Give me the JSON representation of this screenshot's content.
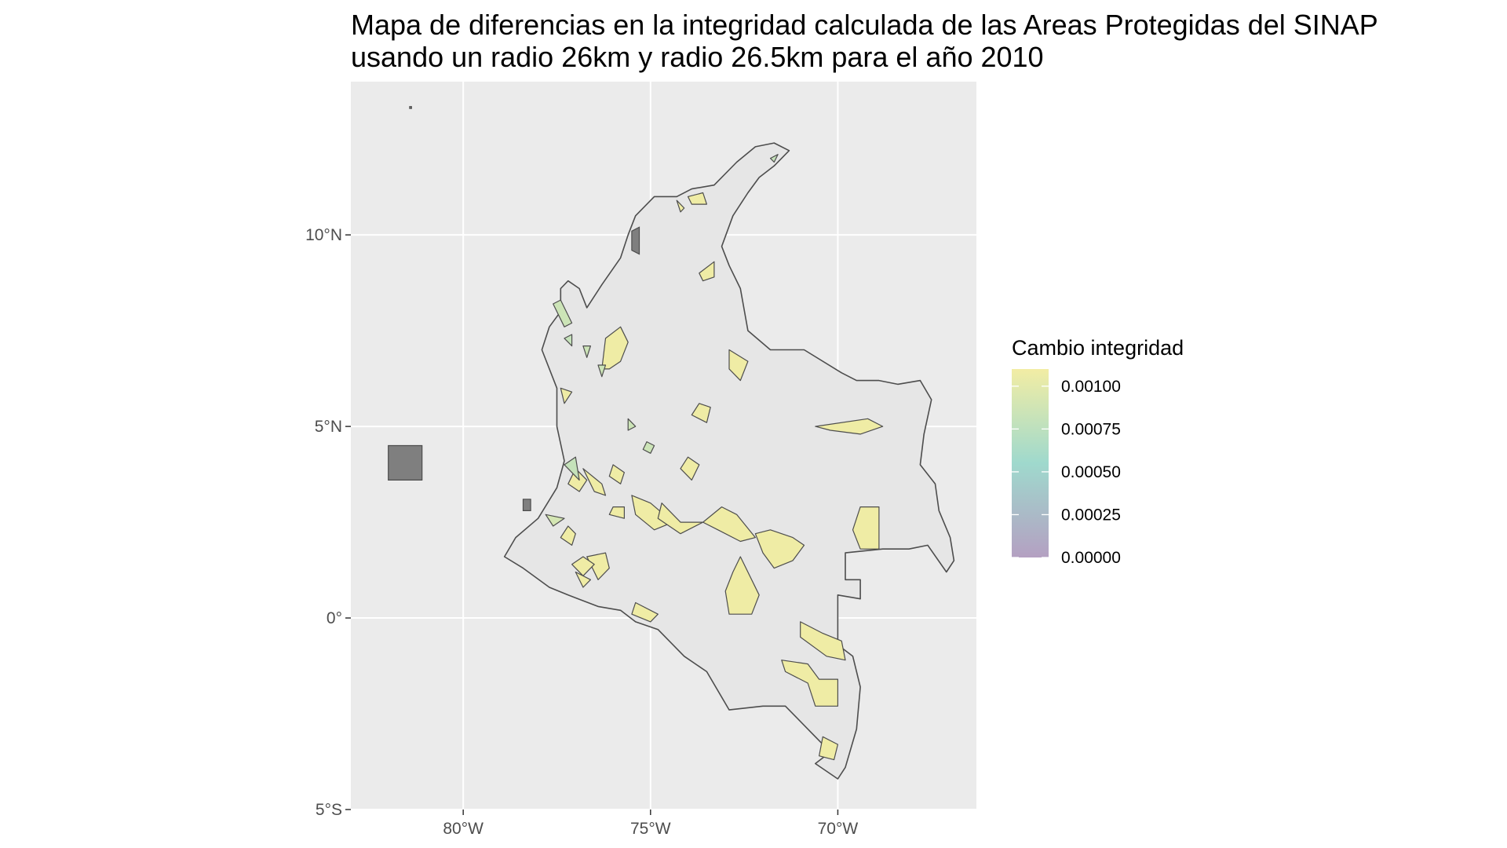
{
  "title": {
    "line1": "Mapa de diferencias en la integridad calculada de las Areas Protegidas del SINAP",
    "line2": "usando un radio 26km y radio 26.5km para el año 2010"
  },
  "colors": {
    "panel_bg": "#ebebeb",
    "grid": "#ffffff",
    "land": "#e6e6e6",
    "border": "#4d4d4d",
    "na_fill": "#7f7f7f",
    "scale_low": "#b4a0c2",
    "scale_mid": "#9fd9cd",
    "scale_high": "#f2eda4"
  },
  "map_data": {
    "projection": "equirectangular (degrees)",
    "lon_range": [
      -83.0,
      -66.3
    ],
    "lat_range": [
      -5.0,
      14.0
    ],
    "x_ticks": [
      {
        "lon": -80,
        "label": "80°W"
      },
      {
        "lon": -75,
        "label": "75°W"
      },
      {
        "lon": -70,
        "label": "70°W"
      }
    ],
    "y_ticks": [
      {
        "lat": 10,
        "label": "10°N"
      },
      {
        "lat": 5,
        "label": "5°N"
      },
      {
        "lat": 0,
        "label": "0°"
      },
      {
        "lat": -5,
        "label": "5°S"
      }
    ],
    "legend": {
      "title": "Cambio integridad",
      "min": 0.0,
      "max": 0.0011,
      "breaks": [
        {
          "value": 0.001,
          "label": "0.00100"
        },
        {
          "value": 0.00075,
          "label": "0.00075"
        },
        {
          "value": 0.0005,
          "label": "0.00050"
        },
        {
          "value": 0.00025,
          "label": "0.00025"
        },
        {
          "value": 0.0,
          "label": "0.00000"
        }
      ]
    },
    "country_outline": [
      [
        -77.4,
        8.6
      ],
      [
        -77.2,
        8.8
      ],
      [
        -76.9,
        8.6
      ],
      [
        -76.7,
        8.1
      ],
      [
        -76.3,
        8.7
      ],
      [
        -75.8,
        9.4
      ],
      [
        -75.6,
        10.0
      ],
      [
        -75.4,
        10.5
      ],
      [
        -74.9,
        11.0
      ],
      [
        -74.3,
        11.0
      ],
      [
        -73.9,
        11.2
      ],
      [
        -73.3,
        11.3
      ],
      [
        -72.7,
        11.9
      ],
      [
        -72.2,
        12.3
      ],
      [
        -71.7,
        12.4
      ],
      [
        -71.3,
        12.2
      ],
      [
        -71.7,
        11.8
      ],
      [
        -72.1,
        11.5
      ],
      [
        -72.4,
        11.1
      ],
      [
        -72.8,
        10.5
      ],
      [
        -73.1,
        9.7
      ],
      [
        -72.9,
        9.2
      ],
      [
        -72.6,
        8.6
      ],
      [
        -72.4,
        7.5
      ],
      [
        -71.8,
        7.0
      ],
      [
        -70.9,
        7.0
      ],
      [
        -69.9,
        6.4
      ],
      [
        -69.5,
        6.2
      ],
      [
        -68.9,
        6.2
      ],
      [
        -68.4,
        6.1
      ],
      [
        -67.8,
        6.2
      ],
      [
        -67.5,
        5.7
      ],
      [
        -67.7,
        4.8
      ],
      [
        -67.8,
        4.0
      ],
      [
        -67.4,
        3.5
      ],
      [
        -67.3,
        2.8
      ],
      [
        -67.0,
        2.1
      ],
      [
        -66.9,
        1.5
      ],
      [
        -67.1,
        1.2
      ],
      [
        -67.6,
        1.9
      ],
      [
        -68.1,
        1.8
      ],
      [
        -68.8,
        1.8
      ],
      [
        -69.8,
        1.7
      ],
      [
        -69.8,
        1.0
      ],
      [
        -69.4,
        1.0
      ],
      [
        -69.4,
        0.5
      ],
      [
        -70.0,
        0.6
      ],
      [
        -70.0,
        -0.7
      ],
      [
        -69.6,
        -1.0
      ],
      [
        -69.4,
        -1.8
      ],
      [
        -69.5,
        -2.9
      ],
      [
        -69.8,
        -3.9
      ],
      [
        -70.0,
        -4.2
      ],
      [
        -70.6,
        -3.8
      ],
      [
        -70.2,
        -3.5
      ],
      [
        -70.7,
        -3.0
      ],
      [
        -71.4,
        -2.3
      ],
      [
        -72.0,
        -2.3
      ],
      [
        -72.9,
        -2.4
      ],
      [
        -73.5,
        -1.4
      ],
      [
        -74.1,
        -1.0
      ],
      [
        -74.8,
        -0.3
      ],
      [
        -75.4,
        -0.1
      ],
      [
        -75.8,
        0.2
      ],
      [
        -76.4,
        0.3
      ],
      [
        -77.2,
        0.6
      ],
      [
        -77.7,
        0.8
      ],
      [
        -78.4,
        1.3
      ],
      [
        -78.9,
        1.6
      ],
      [
        -78.6,
        2.1
      ],
      [
        -78.0,
        2.6
      ],
      [
        -77.5,
        3.4
      ],
      [
        -77.3,
        4.1
      ],
      [
        -77.5,
        5.0
      ],
      [
        -77.5,
        6.0
      ],
      [
        -77.9,
        7.0
      ],
      [
        -77.7,
        7.6
      ],
      [
        -77.4,
        8.0
      ],
      [
        -77.4,
        8.6
      ]
    ],
    "protected_areas_no_data": [
      [
        [
          -82.0,
          4.5
        ],
        [
          -81.1,
          4.5
        ],
        [
          -81.1,
          3.6
        ],
        [
          -82.0,
          3.6
        ]
      ],
      [
        [
          -75.5,
          10.1
        ],
        [
          -75.3,
          10.2
        ],
        [
          -75.3,
          9.5
        ],
        [
          -75.5,
          9.6
        ]
      ],
      [
        [
          -78.4,
          3.1
        ],
        [
          -78.2,
          3.1
        ],
        [
          -78.2,
          2.8
        ],
        [
          -78.4,
          2.8
        ]
      ],
      [
        [
          -81.43,
          13.35
        ],
        [
          -81.38,
          13.35
        ],
        [
          -81.38,
          13.3
        ],
        [
          -81.43,
          13.3
        ]
      ]
    ],
    "protected_areas": [
      {
        "value": 0.00108,
        "coords": [
          [
            -76.3,
            6.5
          ],
          [
            -76.2,
            7.3
          ],
          [
            -75.8,
            7.6
          ],
          [
            -75.6,
            7.2
          ],
          [
            -75.8,
            6.7
          ],
          [
            -76.1,
            6.5
          ]
        ]
      },
      {
        "value": 0.00108,
        "coords": [
          [
            -73.1,
            2.9
          ],
          [
            -72.7,
            2.7
          ],
          [
            -72.2,
            2.1
          ],
          [
            -72.6,
            2.0
          ],
          [
            -73.2,
            2.3
          ],
          [
            -73.6,
            2.5
          ]
        ]
      },
      {
        "value": 0.00108,
        "coords": [
          [
            -71.8,
            2.3
          ],
          [
            -71.2,
            2.1
          ],
          [
            -70.9,
            1.9
          ],
          [
            -71.2,
            1.5
          ],
          [
            -71.7,
            1.3
          ],
          [
            -72.0,
            1.7
          ],
          [
            -72.2,
            2.2
          ]
        ]
      },
      {
        "value": 0.00108,
        "coords": [
          [
            -69.4,
            2.9
          ],
          [
            -68.9,
            2.9
          ],
          [
            -68.9,
            1.8
          ],
          [
            -69.4,
            1.8
          ],
          [
            -69.6,
            2.3
          ]
        ]
      },
      {
        "value": 0.00108,
        "coords": [
          [
            -72.6,
            1.6
          ],
          [
            -72.1,
            0.6
          ],
          [
            -72.3,
            0.1
          ],
          [
            -72.9,
            0.1
          ],
          [
            -73.0,
            0.7
          ],
          [
            -72.8,
            1.2
          ]
        ]
      },
      {
        "value": 0.00108,
        "coords": [
          [
            -75.4,
            0.4
          ],
          [
            -74.8,
            0.1
          ],
          [
            -75.0,
            -0.1
          ],
          [
            -75.5,
            0.1
          ]
        ]
      },
      {
        "value": 0.00108,
        "coords": [
          [
            -71.0,
            -0.1
          ],
          [
            -70.4,
            -0.4
          ],
          [
            -69.9,
            -0.6
          ],
          [
            -69.8,
            -1.1
          ],
          [
            -70.3,
            -1.0
          ],
          [
            -71.0,
            -0.5
          ]
        ]
      },
      {
        "value": 0.00108,
        "coords": [
          [
            -71.5,
            -1.1
          ],
          [
            -70.8,
            -1.2
          ],
          [
            -70.5,
            -1.6
          ],
          [
            -70.0,
            -1.6
          ],
          [
            -70.0,
            -2.3
          ],
          [
            -70.6,
            -2.3
          ],
          [
            -70.8,
            -1.7
          ],
          [
            -71.4,
            -1.4
          ]
        ]
      },
      {
        "value": 0.00108,
        "coords": [
          [
            -70.4,
            -3.1
          ],
          [
            -70.0,
            -3.3
          ],
          [
            -70.1,
            -3.7
          ],
          [
            -70.5,
            -3.6
          ]
        ]
      },
      {
        "value": 0.00108,
        "coords": [
          [
            -70.6,
            5.0
          ],
          [
            -69.2,
            5.2
          ],
          [
            -68.8,
            5.0
          ],
          [
            -69.4,
            4.8
          ],
          [
            -70.2,
            4.9
          ]
        ]
      },
      {
        "value": 0.00108,
        "coords": [
          [
            -72.9,
            7.0
          ],
          [
            -72.4,
            6.7
          ],
          [
            -72.6,
            6.2
          ],
          [
            -72.9,
            6.5
          ]
        ]
      },
      {
        "value": 0.00108,
        "coords": [
          [
            -73.7,
            9.0
          ],
          [
            -73.3,
            9.3
          ],
          [
            -73.3,
            8.9
          ],
          [
            -73.6,
            8.8
          ]
        ]
      },
      {
        "value": 0.00108,
        "coords": [
          [
            -74.0,
            11.0
          ],
          [
            -73.6,
            11.1
          ],
          [
            -73.5,
            10.8
          ],
          [
            -73.9,
            10.8
          ]
        ]
      },
      {
        "value": 0.00108,
        "coords": [
          [
            -76.3,
            3.5
          ],
          [
            -76.8,
            3.9
          ],
          [
            -76.5,
            3.3
          ],
          [
            -76.2,
            3.2
          ]
        ]
      },
      {
        "value": 0.00108,
        "coords": [
          [
            -75.5,
            3.2
          ],
          [
            -75.0,
            3.0
          ],
          [
            -74.4,
            2.5
          ],
          [
            -74.9,
            2.3
          ],
          [
            -75.4,
            2.7
          ]
        ]
      },
      {
        "value": 0.00108,
        "coords": [
          [
            -74.7,
            3.0
          ],
          [
            -74.2,
            2.5
          ],
          [
            -73.6,
            2.5
          ],
          [
            -74.2,
            2.2
          ],
          [
            -74.8,
            2.6
          ]
        ]
      },
      {
        "value": 0.00108,
        "coords": [
          [
            -76.7,
            1.6
          ],
          [
            -76.2,
            1.7
          ],
          [
            -76.1,
            1.3
          ],
          [
            -76.4,
            1.0
          ]
        ]
      },
      {
        "value": 0.00108,
        "coords": [
          [
            -77.0,
            3.9
          ],
          [
            -76.7,
            3.6
          ],
          [
            -76.9,
            3.3
          ],
          [
            -77.2,
            3.5
          ]
        ]
      },
      {
        "value": 0.00108,
        "coords": [
          [
            -76.0,
            4.0
          ],
          [
            -75.7,
            3.8
          ],
          [
            -75.8,
            3.5
          ],
          [
            -76.1,
            3.7
          ]
        ]
      },
      {
        "value": 0.00108,
        "coords": [
          [
            -76.0,
            2.9
          ],
          [
            -75.7,
            2.9
          ],
          [
            -75.7,
            2.6
          ],
          [
            -76.1,
            2.7
          ]
        ]
      },
      {
        "value": 0.00108,
        "coords": [
          [
            -73.7,
            5.6
          ],
          [
            -73.4,
            5.5
          ],
          [
            -73.5,
            5.1
          ],
          [
            -73.9,
            5.3
          ]
        ]
      },
      {
        "value": 0.00108,
        "coords": [
          [
            -74.0,
            4.2
          ],
          [
            -73.7,
            4.0
          ],
          [
            -73.9,
            3.6
          ],
          [
            -74.2,
            3.9
          ]
        ]
      },
      {
        "value": 0.00108,
        "coords": [
          [
            -76.8,
            1.6
          ],
          [
            -77.1,
            1.4
          ],
          [
            -76.8,
            1.1
          ],
          [
            -76.5,
            1.4
          ]
        ]
      },
      {
        "value": 0.00108,
        "coords": [
          [
            -77.2,
            2.4
          ],
          [
            -77.4,
            2.1
          ],
          [
            -77.1,
            1.9
          ],
          [
            -77.0,
            2.2
          ]
        ]
      },
      {
        "value": 0.00108,
        "coords": [
          [
            -77.4,
            6.0
          ],
          [
            -77.1,
            5.9
          ],
          [
            -77.3,
            5.6
          ]
        ]
      },
      {
        "value": 0.00108,
        "coords": [
          [
            -77.0,
            1.2
          ],
          [
            -76.8,
            0.8
          ],
          [
            -76.6,
            1.0
          ]
        ]
      },
      {
        "value": 0.00108,
        "coords": [
          [
            -74.3,
            10.9
          ],
          [
            -74.1,
            10.7
          ],
          [
            -74.2,
            10.6
          ]
        ]
      },
      {
        "value": 0.0009,
        "coords": [
          [
            -77.8,
            2.7
          ],
          [
            -77.3,
            2.6
          ],
          [
            -77.6,
            2.4
          ]
        ]
      },
      {
        "value": 0.00085,
        "coords": [
          [
            -77.6,
            8.2
          ],
          [
            -77.4,
            8.3
          ],
          [
            -77.1,
            7.7
          ],
          [
            -77.3,
            7.6
          ]
        ]
      },
      {
        "value": 0.00085,
        "coords": [
          [
            -75.1,
            4.6
          ],
          [
            -74.9,
            4.5
          ],
          [
            -75.0,
            4.3
          ],
          [
            -75.2,
            4.4
          ]
        ]
      },
      {
        "value": 0.00085,
        "coords": [
          [
            -75.6,
            5.2
          ],
          [
            -75.4,
            5.0
          ],
          [
            -75.6,
            4.9
          ]
        ]
      },
      {
        "value": 0.00085,
        "coords": [
          [
            -76.8,
            7.1
          ],
          [
            -76.6,
            7.1
          ],
          [
            -76.7,
            6.8
          ]
        ]
      },
      {
        "value": 0.00085,
        "coords": [
          [
            -76.4,
            6.6
          ],
          [
            -76.2,
            6.6
          ],
          [
            -76.3,
            6.3
          ]
        ]
      },
      {
        "value": 0.0008,
        "coords": [
          [
            -77.3,
            7.3
          ],
          [
            -77.1,
            7.4
          ],
          [
            -77.1,
            7.1
          ]
        ]
      },
      {
        "value": 0.0008,
        "coords": [
          [
            -71.8,
            12.0
          ],
          [
            -71.6,
            12.1
          ],
          [
            -71.7,
            11.9
          ]
        ]
      },
      {
        "value": 0.0008,
        "coords": [
          [
            -77.0,
            4.2
          ],
          [
            -77.3,
            4.0
          ],
          [
            -76.9,
            3.6
          ]
        ]
      }
    ]
  }
}
